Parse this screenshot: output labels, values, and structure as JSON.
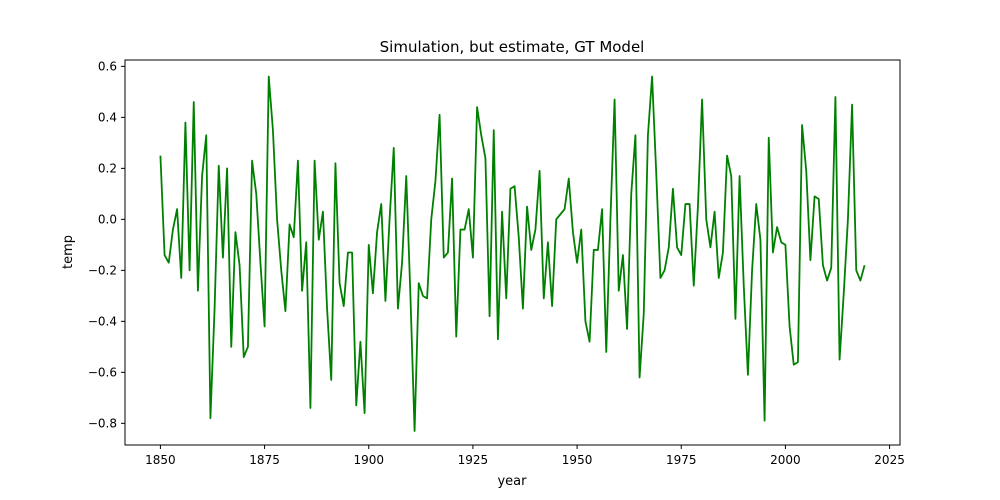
{
  "chart_data": {
    "type": "line",
    "title": "Simulation, but estimate, GT Model",
    "xlabel": "year",
    "ylabel": "temp",
    "xlim": [
      1841.5,
      2027.5
    ],
    "ylim": [
      -0.885,
      0.625
    ],
    "xticks": [
      1850,
      1875,
      1900,
      1925,
      1950,
      1975,
      2000,
      2025
    ],
    "xtick_labels": [
      "1850",
      "1875",
      "1900",
      "1925",
      "1950",
      "1975",
      "2000",
      "2025"
    ],
    "yticks": [
      -0.8,
      -0.6,
      -0.4,
      -0.2,
      0.0,
      0.2,
      0.4,
      0.6
    ],
    "ytick_labels": [
      "−0.8",
      "−0.6",
      "−0.4",
      "−0.2",
      "0.0",
      "0.2",
      "0.4",
      "0.6"
    ],
    "grid": false,
    "legend": "none",
    "series": [
      {
        "color": "#008000",
        "x": [
          1850,
          1851,
          1852,
          1853,
          1854,
          1855,
          1856,
          1857,
          1858,
          1859,
          1860,
          1861,
          1862,
          1863,
          1864,
          1865,
          1866,
          1867,
          1868,
          1869,
          1870,
          1871,
          1872,
          1873,
          1874,
          1875,
          1876,
          1877,
          1878,
          1879,
          1880,
          1881,
          1882,
          1883,
          1884,
          1885,
          1886,
          1887,
          1888,
          1889,
          1890,
          1891,
          1892,
          1893,
          1894,
          1895,
          1896,
          1897,
          1898,
          1899,
          1900,
          1901,
          1902,
          1903,
          1904,
          1905,
          1906,
          1907,
          1908,
          1909,
          1910,
          1911,
          1912,
          1913,
          1914,
          1915,
          1916,
          1917,
          1918,
          1919,
          1920,
          1921,
          1922,
          1923,
          1924,
          1925,
          1926,
          1927,
          1928,
          1929,
          1930,
          1931,
          1932,
          1933,
          1934,
          1935,
          1936,
          1937,
          1938,
          1939,
          1940,
          1941,
          1942,
          1943,
          1944,
          1945,
          1946,
          1947,
          1948,
          1949,
          1950,
          1951,
          1952,
          1953,
          1954,
          1955,
          1956,
          1957,
          1958,
          1959,
          1960,
          1961,
          1962,
          1963,
          1964,
          1965,
          1966,
          1967,
          1968,
          1969,
          1970,
          1971,
          1972,
          1973,
          1974,
          1975,
          1976,
          1977,
          1978,
          1979,
          1980,
          1981,
          1982,
          1983,
          1984,
          1985,
          1986,
          1987,
          1988,
          1989,
          1990,
          1991,
          1992,
          1993,
          1994,
          1995,
          1996,
          1997,
          1998,
          1999,
          2000,
          2001,
          2002,
          2003,
          2004,
          2005,
          2006,
          2007,
          2008,
          2009,
          2010,
          2011,
          2012,
          2013,
          2014,
          2015,
          2016,
          2017,
          2018,
          2019
        ],
        "y": [
          0.25,
          -0.14,
          -0.17,
          -0.04,
          0.04,
          -0.23,
          0.38,
          -0.2,
          0.46,
          -0.28,
          0.17,
          0.33,
          -0.78,
          -0.35,
          0.21,
          -0.15,
          0.2,
          -0.5,
          -0.05,
          -0.18,
          -0.54,
          -0.5,
          0.23,
          0.1,
          -0.17,
          -0.42,
          0.56,
          0.35,
          0.0,
          -0.2,
          -0.36,
          -0.02,
          -0.07,
          0.23,
          -0.28,
          -0.09,
          -0.74,
          0.23,
          -0.08,
          0.03,
          -0.35,
          -0.63,
          0.22,
          -0.25,
          -0.34,
          -0.13,
          -0.13,
          -0.73,
          -0.48,
          -0.76,
          -0.1,
          -0.29,
          -0.05,
          0.06,
          -0.32,
          0.0,
          0.28,
          -0.35,
          -0.17,
          0.17,
          -0.3,
          -0.83,
          -0.25,
          -0.3,
          -0.31,
          0.0,
          0.15,
          0.41,
          -0.15,
          -0.13,
          0.16,
          -0.46,
          -0.04,
          -0.04,
          0.04,
          -0.15,
          0.44,
          0.33,
          0.24,
          -0.38,
          0.35,
          -0.47,
          0.03,
          -0.31,
          0.12,
          0.13,
          -0.07,
          -0.35,
          0.05,
          -0.12,
          -0.04,
          0.19,
          -0.31,
          -0.09,
          -0.34,
          0.0,
          0.02,
          0.04,
          0.16,
          -0.05,
          -0.17,
          -0.04,
          -0.4,
          -0.48,
          -0.12,
          -0.12,
          0.04,
          -0.52,
          0.0,
          0.47,
          -0.28,
          -0.14,
          -0.43,
          0.1,
          0.33,
          -0.62,
          -0.37,
          0.33,
          0.56,
          0.18,
          -0.23,
          -0.2,
          -0.11,
          0.12,
          -0.11,
          -0.14,
          0.06,
          0.06,
          -0.26,
          0.05,
          0.47,
          0.0,
          -0.11,
          0.03,
          -0.23,
          -0.13,
          0.25,
          0.17,
          -0.39,
          0.17,
          -0.26,
          -0.61,
          -0.2,
          0.06,
          -0.08,
          -0.79,
          0.32,
          -0.13,
          -0.03,
          -0.09,
          -0.1,
          -0.42,
          -0.57,
          -0.56,
          0.37,
          0.19,
          -0.16,
          0.09,
          0.08,
          -0.18,
          -0.24,
          -0.19,
          0.48,
          -0.55,
          -0.29,
          0.0,
          0.45,
          -0.2,
          -0.24,
          -0.18
        ]
      }
    ]
  }
}
